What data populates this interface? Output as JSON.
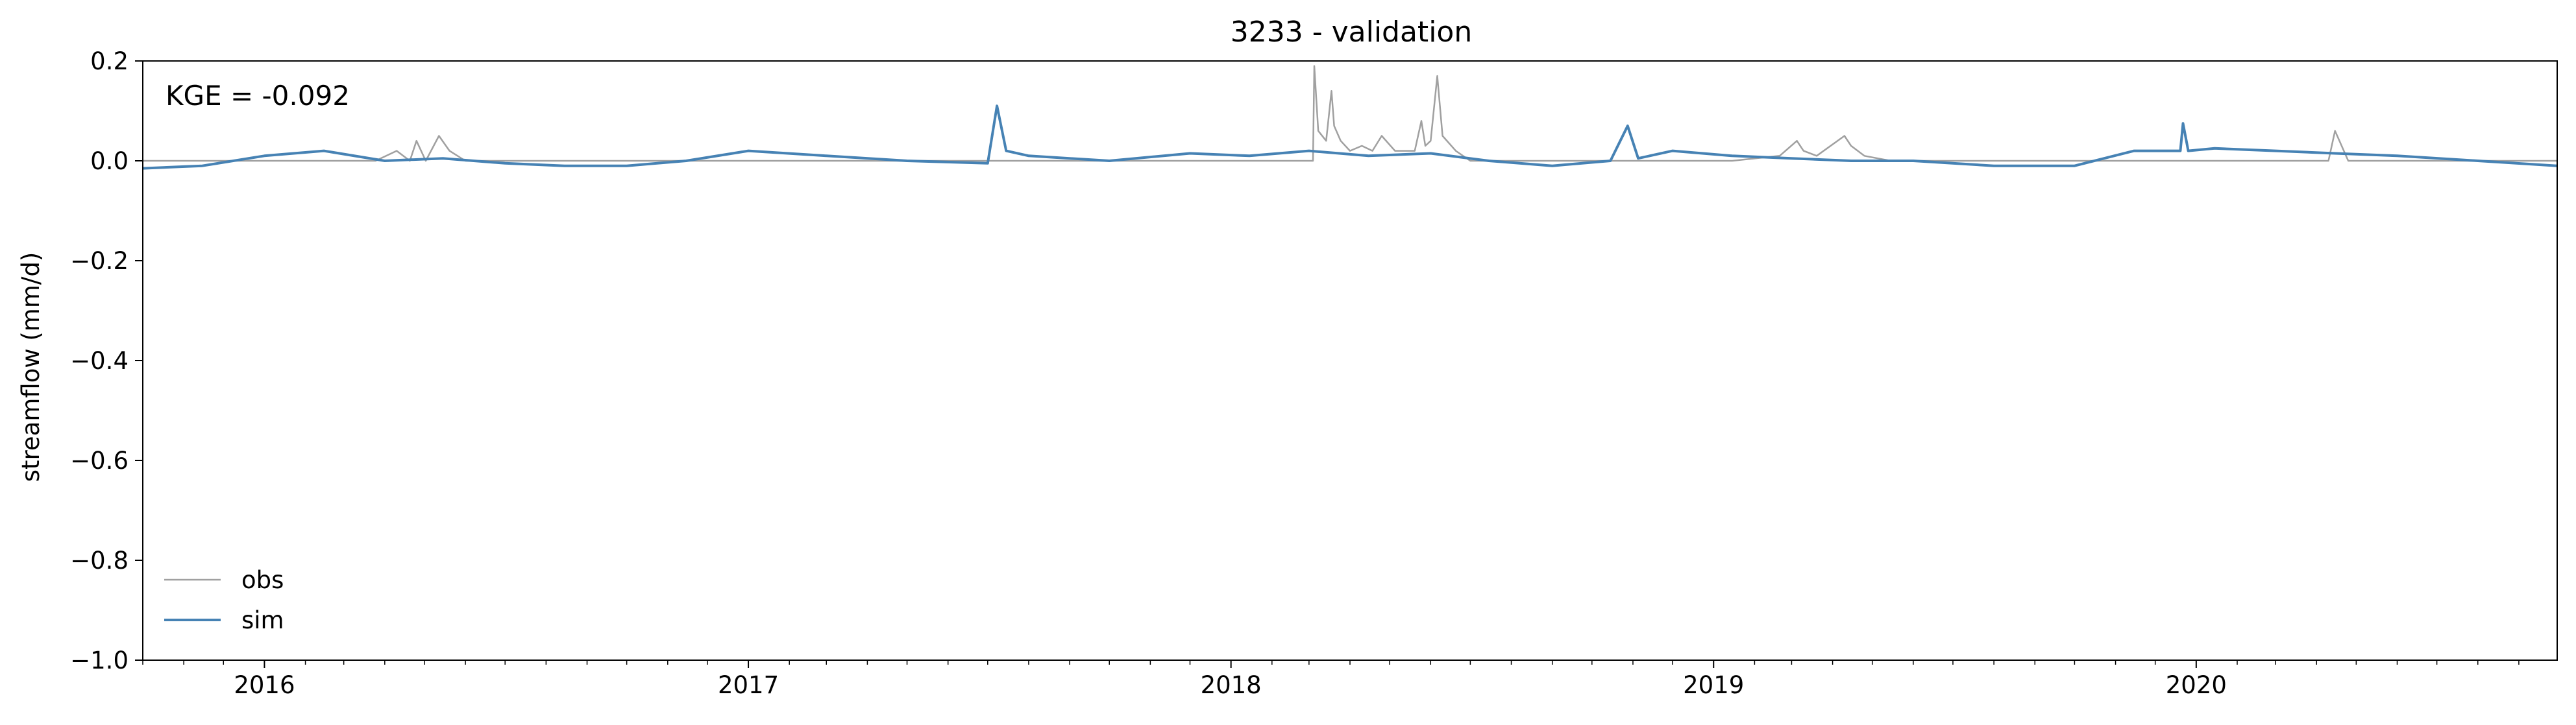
{
  "chart_data": {
    "type": "line",
    "title": "3233 - validation",
    "xlabel": "",
    "ylabel": "streamflow (mm/d)",
    "annotation": "KGE = -0.092",
    "ylim": [
      -1.0,
      0.2
    ],
    "xlim": [
      "2015-10-01",
      "2020-09-30"
    ],
    "yticks": [
      "0.2",
      "0.0",
      "−0.2",
      "−0.4",
      "−0.6",
      "−0.8",
      "−1.0"
    ],
    "ytick_values": [
      0.2,
      0.0,
      -0.2,
      -0.4,
      -0.6,
      -0.8,
      -1.0
    ],
    "xticks": [
      "2016",
      "2017",
      "2018",
      "2019",
      "2020"
    ],
    "xtick_dates": [
      "2016-01-01",
      "2017-01-01",
      "2018-01-01",
      "2019-01-01",
      "2020-01-01"
    ],
    "grid": false,
    "legend": "lower-left",
    "series": [
      {
        "name": "obs",
        "color": "#a0a0a0",
        "x": [
          "2015-10-01",
          "2016-03-25",
          "2016-04-10",
          "2016-04-20",
          "2016-04-25",
          "2016-05-02",
          "2016-05-12",
          "2016-05-20",
          "2016-06-01",
          "2017-12-01",
          "2018-03-04",
          "2018-03-05",
          "2018-03-08",
          "2018-03-14",
          "2018-03-18",
          "2018-03-20",
          "2018-03-25",
          "2018-04-01",
          "2018-04-10",
          "2018-04-18",
          "2018-04-25",
          "2018-05-05",
          "2018-05-20",
          "2018-05-25",
          "2018-05-28",
          "2018-06-01",
          "2018-06-06",
          "2018-06-10",
          "2018-06-20",
          "2018-07-01",
          "2019-01-15",
          "2019-02-20",
          "2019-03-05",
          "2019-03-10",
          "2019-03-20",
          "2019-04-10",
          "2019-04-15",
          "2019-04-25",
          "2019-05-15",
          "2019-06-01",
          "2020-01-01",
          "2020-04-10",
          "2020-04-15",
          "2020-04-25",
          "2020-09-30"
        ],
        "y": [
          0.0,
          0.0,
          0.02,
          0.0,
          0.04,
          0.0,
          0.05,
          0.02,
          0.0,
          0.0,
          0.0,
          0.19,
          0.06,
          0.04,
          0.14,
          0.07,
          0.04,
          0.02,
          0.03,
          0.02,
          0.05,
          0.02,
          0.02,
          0.08,
          0.03,
          0.04,
          0.17,
          0.05,
          0.02,
          0.0,
          0.0,
          0.01,
          0.04,
          0.02,
          0.01,
          0.05,
          0.03,
          0.01,
          0.0,
          0.0,
          0.0,
          0.0,
          0.06,
          0.0,
          0.0
        ]
      },
      {
        "name": "sim",
        "color": "#4682b4",
        "x": [
          "2015-10-01",
          "2015-11-15",
          "2016-01-01",
          "2016-02-15",
          "2016-04-01",
          "2016-05-15",
          "2016-07-01",
          "2016-08-15",
          "2016-10-01",
          "2016-11-15",
          "2017-01-01",
          "2017-03-01",
          "2017-05-01",
          "2017-07-01",
          "2017-07-08",
          "2017-07-15",
          "2017-08-01",
          "2017-10-01",
          "2017-12-01",
          "2018-01-15",
          "2018-03-01",
          "2018-04-15",
          "2018-06-01",
          "2018-07-15",
          "2018-09-01",
          "2018-10-15",
          "2018-10-28",
          "2018-11-05",
          "2018-12-01",
          "2019-01-15",
          "2019-03-01",
          "2019-04-15",
          "2019-06-01",
          "2019-08-01",
          "2019-10-01",
          "2019-11-15",
          "2019-12-20",
          "2019-12-22",
          "2019-12-26",
          "2020-01-15",
          "2020-03-01",
          "2020-04-15",
          "2020-06-01",
          "2020-08-01",
          "2020-09-30"
        ],
        "y": [
          -0.015,
          -0.01,
          0.01,
          0.02,
          0.0,
          0.005,
          -0.005,
          -0.01,
          -0.01,
          0.0,
          0.02,
          0.01,
          0.0,
          -0.005,
          0.11,
          0.02,
          0.01,
          0.0,
          0.015,
          0.01,
          0.02,
          0.01,
          0.015,
          0.0,
          -0.01,
          0.0,
          0.07,
          0.005,
          0.02,
          0.01,
          0.005,
          0.0,
          0.0,
          -0.01,
          -0.01,
          0.02,
          0.02,
          0.075,
          0.02,
          0.025,
          0.02,
          0.015,
          0.01,
          0.0,
          -0.01
        ]
      }
    ]
  }
}
